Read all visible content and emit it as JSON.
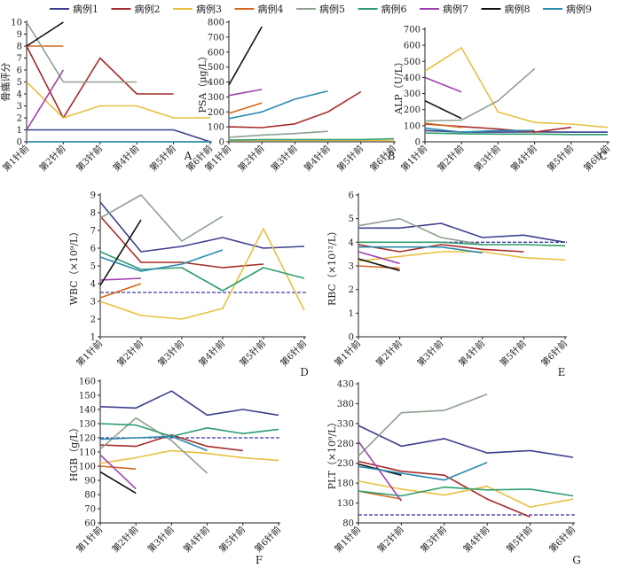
{
  "legend": {
    "entries": [
      {
        "name": "病例1",
        "color": "#3c3f8f"
      },
      {
        "name": "病例2",
        "color": "#a52a2a"
      },
      {
        "name": "病例3",
        "color": "#e8c040"
      },
      {
        "name": "病例4",
        "color": "#d2691e"
      },
      {
        "name": "病例5",
        "color": "#8fa08f"
      },
      {
        "name": "病例6",
        "color": "#2e9e6e"
      },
      {
        "name": "病例7",
        "color": "#a040b0"
      },
      {
        "name": "病例8",
        "color": "#111111"
      },
      {
        "name": "病例9",
        "color": "#2a8bb0"
      }
    ]
  },
  "chart_data": [
    {
      "panel": "A",
      "type": "line",
      "ylabel": "骨痛评分",
      "categories": [
        "第1针前",
        "第2针前",
        "第3针前",
        "第4针前",
        "第5针前",
        "第6针前"
      ],
      "ylim": [
        0,
        10
      ],
      "yticks": [
        0,
        1,
        2,
        3,
        4,
        5,
        6,
        7,
        8,
        9,
        10
      ],
      "series": [
        {
          "name": "病例1",
          "values": [
            1,
            1,
            1,
            1,
            1,
            0
          ]
        },
        {
          "name": "病例2",
          "values": [
            8,
            2,
            7,
            4,
            4,
            null
          ]
        },
        {
          "name": "病例3",
          "values": [
            5,
            2,
            3,
            3,
            2,
            2
          ]
        },
        {
          "name": "病例4",
          "values": [
            8,
            8,
            null,
            null,
            null,
            null
          ]
        },
        {
          "name": "病例5",
          "values": [
            10,
            5,
            5,
            5,
            null,
            null
          ]
        },
        {
          "name": "病例6",
          "values": [
            0,
            0,
            0,
            0,
            0,
            0
          ]
        },
        {
          "name": "病例7",
          "values": [
            1,
            6,
            null,
            null,
            null,
            null
          ]
        },
        {
          "name": "病例8",
          "values": [
            8,
            10,
            null,
            null,
            null,
            null
          ]
        },
        {
          "name": "病例9",
          "values": [
            0,
            0,
            0,
            0,
            0,
            0
          ]
        }
      ]
    },
    {
      "panel": "B",
      "type": "line",
      "ylabel": "PSA（μg/L）",
      "categories": [
        "第1针前",
        "第2针前",
        "第3针前",
        "第4针前",
        "第5针前",
        "第6针前"
      ],
      "ylim": [
        0,
        800
      ],
      "yticks": [
        0,
        100,
        200,
        300,
        400,
        500,
        600,
        700,
        800
      ],
      "series": [
        {
          "name": "病例1",
          "values": [
            5,
            5,
            5,
            5,
            5,
            5
          ]
        },
        {
          "name": "病例2",
          "values": [
            100,
            95,
            120,
            200,
            335,
            null
          ]
        },
        {
          "name": "病例3",
          "values": [
            8,
            8,
            8,
            8,
            8,
            8
          ]
        },
        {
          "name": "病例4",
          "values": [
            190,
            260,
            null,
            null,
            null,
            null
          ]
        },
        {
          "name": "病例5",
          "values": [
            30,
            45,
            55,
            70,
            null,
            null
          ]
        },
        {
          "name": "病例6",
          "values": [
            12,
            15,
            15,
            15,
            15,
            20
          ]
        },
        {
          "name": "病例7",
          "values": [
            310,
            350,
            null,
            null,
            null,
            null
          ]
        },
        {
          "name": "病例8",
          "values": [
            380,
            770,
            null,
            null,
            null,
            null
          ]
        },
        {
          "name": "病例9",
          "values": [
            155,
            200,
            285,
            340,
            null,
            null
          ]
        }
      ]
    },
    {
      "panel": "C",
      "type": "line",
      "ylabel": "ALP（U/L）",
      "categories": [
        "第1针前",
        "第2针前",
        "第3针前",
        "第4针前",
        "第5针前",
        "第6针前"
      ],
      "ylim": [
        0,
        700
      ],
      "yticks": [
        0,
        100,
        200,
        300,
        400,
        500,
        600,
        700
      ],
      "series": [
        {
          "name": "病例1",
          "values": [
            70,
            60,
            60,
            62,
            60,
            60
          ]
        },
        {
          "name": "病例2",
          "values": [
            110,
            95,
            80,
            60,
            90,
            null
          ]
        },
        {
          "name": "病例3",
          "values": [
            440,
            585,
            185,
            120,
            110,
            90
          ]
        },
        {
          "name": "病例4",
          "values": [
            115,
            90,
            null,
            null,
            null,
            null
          ]
        },
        {
          "name": "病例5",
          "values": [
            130,
            135,
            255,
            455,
            null,
            null
          ]
        },
        {
          "name": "病例6",
          "values": [
            55,
            50,
            48,
            48,
            45,
            45
          ]
        },
        {
          "name": "病例7",
          "values": [
            400,
            310,
            null,
            null,
            null,
            null
          ]
        },
        {
          "name": "病例8",
          "values": [
            255,
            145,
            null,
            null,
            null,
            null
          ]
        },
        {
          "name": "病例9",
          "values": [
            85,
            60,
            70,
            70,
            null,
            null
          ]
        }
      ]
    },
    {
      "panel": "D",
      "type": "line",
      "ylabel": "WBC（×10⁹/L）",
      "categories": [
        "第1针前",
        "第2针前",
        "第3针前",
        "第4针前",
        "第5针前",
        "第6针前"
      ],
      "ylim": [
        1,
        9
      ],
      "yticks": [
        1,
        2,
        3,
        4,
        5,
        6,
        7,
        8,
        9
      ],
      "reference_line": 3.5,
      "series": [
        {
          "name": "病例1",
          "values": [
            8.6,
            5.8,
            6.1,
            6.6,
            6.0,
            6.1
          ]
        },
        {
          "name": "病例2",
          "values": [
            7.8,
            5.2,
            5.2,
            4.9,
            5.1,
            null
          ]
        },
        {
          "name": "病例3",
          "values": [
            3.0,
            2.2,
            2.0,
            2.6,
            7.1,
            2.5
          ]
        },
        {
          "name": "病例4",
          "values": [
            3.2,
            4.0,
            null,
            null,
            null,
            null
          ]
        },
        {
          "name": "病例5",
          "values": [
            7.7,
            9.0,
            6.4,
            7.8,
            null,
            null
          ]
        },
        {
          "name": "病例6",
          "values": [
            5.8,
            4.8,
            4.9,
            3.6,
            4.9,
            4.3
          ]
        },
        {
          "name": "病例7",
          "values": [
            4.2,
            4.3,
            null,
            null,
            null,
            null
          ]
        },
        {
          "name": "病例8",
          "values": [
            3.9,
            7.6,
            null,
            null,
            null,
            null
          ]
        },
        {
          "name": "病例9",
          "values": [
            5.5,
            4.7,
            5.1,
            5.9,
            null,
            null
          ]
        }
      ]
    },
    {
      "panel": "E",
      "type": "line",
      "ylabel": "RBC（×10¹²/L）",
      "categories": [
        "第1针前",
        "第2针前",
        "第3针前",
        "第4针前",
        "第5针前",
        "第6针前"
      ],
      "ylim": [
        0,
        6
      ],
      "yticks": [
        0,
        1,
        2,
        3,
        4,
        5,
        6
      ],
      "reference_line": 4.0,
      "series": [
        {
          "name": "病例1",
          "values": [
            4.6,
            4.6,
            4.8,
            4.2,
            4.3,
            4.0
          ]
        },
        {
          "name": "病例2",
          "values": [
            3.9,
            3.6,
            3.9,
            3.7,
            3.6,
            null
          ]
        },
        {
          "name": "病例3",
          "values": [
            3.2,
            3.4,
            3.6,
            3.6,
            3.35,
            3.25
          ]
        },
        {
          "name": "病例4",
          "values": [
            3.0,
            2.9,
            null,
            null,
            null,
            null
          ]
        },
        {
          "name": "病例5",
          "values": [
            4.7,
            5.0,
            4.2,
            3.9,
            null,
            null
          ]
        },
        {
          "name": "病例6",
          "values": [
            4.0,
            4.0,
            4.0,
            3.9,
            3.9,
            3.85
          ]
        },
        {
          "name": "病例7",
          "values": [
            3.6,
            3.1,
            null,
            null,
            null,
            null
          ]
        },
        {
          "name": "病例8",
          "values": [
            3.3,
            2.8,
            null,
            null,
            null,
            null
          ]
        },
        {
          "name": "病例9",
          "values": [
            3.8,
            3.8,
            3.8,
            3.55,
            null,
            null
          ]
        }
      ]
    },
    {
      "panel": "F",
      "type": "line",
      "ylabel": "HGB（g/L）",
      "categories": [
        "第1针前",
        "第2针前",
        "第3针前",
        "第4针前",
        "第5针前",
        "第6针前"
      ],
      "ylim": [
        60,
        160
      ],
      "yticks": [
        60,
        70,
        80,
        90,
        100,
        110,
        120,
        130,
        140,
        150,
        160
      ],
      "reference_line": 120,
      "series": [
        {
          "name": "病例1",
          "values": [
            142,
            141,
            153,
            136,
            140,
            136
          ]
        },
        {
          "name": "病例2",
          "values": [
            115,
            114,
            122,
            114,
            111,
            null
          ]
        },
        {
          "name": "病例3",
          "values": [
            102,
            106,
            111,
            109,
            106,
            104
          ]
        },
        {
          "name": "病例4",
          "values": [
            100,
            98,
            null,
            null,
            null,
            null
          ]
        },
        {
          "name": "病例5",
          "values": [
            112,
            134,
            118,
            95,
            null,
            null
          ]
        },
        {
          "name": "病例6",
          "values": [
            130,
            129,
            121,
            127,
            123,
            126
          ]
        },
        {
          "name": "病例7",
          "values": [
            108,
            84,
            null,
            null,
            null,
            null
          ]
        },
        {
          "name": "病例8",
          "values": [
            96,
            81,
            null,
            null,
            null,
            null
          ]
        },
        {
          "name": "病例9",
          "values": [
            119,
            120,
            121,
            111,
            null,
            null
          ]
        }
      ]
    },
    {
      "panel": "G",
      "type": "line",
      "ylabel": "PLT（×10⁹/L）",
      "categories": [
        "第1针前",
        "第2针前",
        "第3针前",
        "第4针前",
        "第5针前",
        "第6针前"
      ],
      "ylim": [
        80,
        430
      ],
      "yticks": [
        80,
        130,
        180,
        230,
        280,
        330,
        380,
        430
      ],
      "reference_line": 100,
      "series": [
        {
          "name": "病例1",
          "values": [
            325,
            273,
            292,
            256,
            262,
            245
          ]
        },
        {
          "name": "病例2",
          "values": [
            235,
            210,
            200,
            140,
            95,
            null
          ]
        },
        {
          "name": "病例3",
          "values": [
            185,
            165,
            150,
            172,
            120,
            140
          ]
        },
        {
          "name": "病例4",
          "values": [
            160,
            140,
            null,
            null,
            null,
            null
          ]
        },
        {
          "name": "病例5",
          "values": [
            248,
            357,
            363,
            404,
            null,
            null
          ]
        },
        {
          "name": "病例6",
          "values": [
            160,
            148,
            170,
            163,
            165,
            148
          ]
        },
        {
          "name": "病例7",
          "values": [
            285,
            135,
            null,
            null,
            null,
            null
          ]
        },
        {
          "name": "病例8",
          "values": [
            228,
            200,
            null,
            null,
            null,
            null
          ]
        },
        {
          "name": "病例9",
          "values": [
            222,
            205,
            188,
            232,
            null,
            null
          ]
        }
      ]
    }
  ],
  "panels": [
    "A",
    "B",
    "C",
    "D",
    "E",
    "F",
    "G"
  ]
}
